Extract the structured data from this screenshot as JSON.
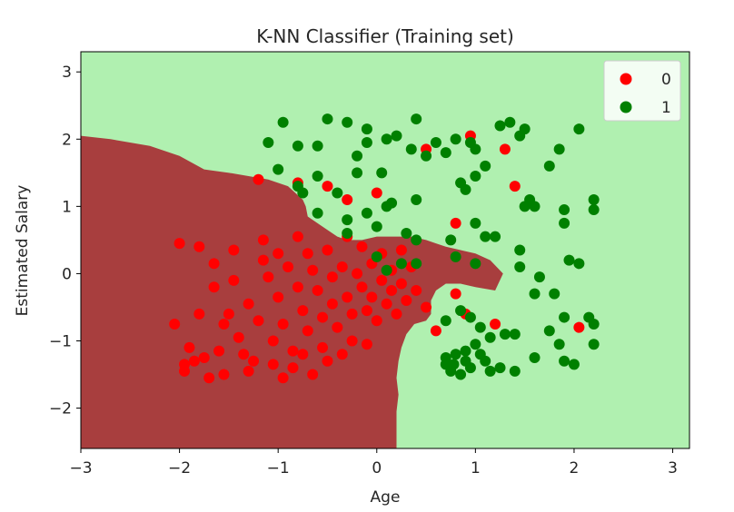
{
  "chart_data": {
    "type": "scatter",
    "title": "K-NN Classifier (Training set)",
    "xlabel": "Age",
    "ylabel": "Estimated Salary",
    "xlim": [
      -3,
      3.17
    ],
    "ylim": [
      -2.6,
      3.3
    ],
    "xticks": [
      -3,
      -2,
      -1,
      0,
      1,
      2,
      3
    ],
    "yticks": [
      -2,
      -1,
      0,
      1,
      2,
      3
    ],
    "grid": false,
    "legend_position": "top-right",
    "region_colors": {
      "0": "#a83e3e",
      "1": "#b0f0b0"
    },
    "decision_region_class0_polygon": [
      [
        -3,
        -2.6
      ],
      [
        -3,
        2.05
      ],
      [
        -2.7,
        2.0
      ],
      [
        -2.3,
        1.9
      ],
      [
        -2.0,
        1.75
      ],
      [
        -1.75,
        1.55
      ],
      [
        -1.5,
        1.5
      ],
      [
        -1.3,
        1.45
      ],
      [
        -1.1,
        1.4
      ],
      [
        -0.9,
        1.3
      ],
      [
        -0.75,
        1.1
      ],
      [
        -0.72,
        1.0
      ],
      [
        -0.7,
        0.85
      ],
      [
        -0.55,
        0.7
      ],
      [
        -0.4,
        0.55
      ],
      [
        -0.3,
        0.5
      ],
      [
        -0.15,
        0.5
      ],
      [
        0.0,
        0.55
      ],
      [
        0.15,
        0.55
      ],
      [
        0.35,
        0.55
      ],
      [
        0.5,
        0.5
      ],
      [
        0.6,
        0.45
      ],
      [
        0.7,
        0.4
      ],
      [
        0.85,
        0.35
      ],
      [
        1.0,
        0.3
      ],
      [
        1.15,
        0.2
      ],
      [
        1.28,
        0.0
      ],
      [
        1.2,
        -0.25
      ],
      [
        1.0,
        -0.2
      ],
      [
        0.85,
        -0.15
      ],
      [
        0.7,
        -0.15
      ],
      [
        0.6,
        -0.25
      ],
      [
        0.55,
        -0.4
      ],
      [
        0.55,
        -0.6
      ],
      [
        0.5,
        -0.7
      ],
      [
        0.38,
        -0.75
      ],
      [
        0.3,
        -0.9
      ],
      [
        0.25,
        -1.1
      ],
      [
        0.22,
        -1.3
      ],
      [
        0.2,
        -1.55
      ],
      [
        0.22,
        -1.8
      ],
      [
        0.2,
        -2.05
      ],
      [
        0.2,
        -2.6
      ]
    ],
    "series": [
      {
        "name": "0",
        "color": "#ff0000",
        "points": [
          [
            -2.0,
            0.45
          ],
          [
            -2.05,
            -0.75
          ],
          [
            -1.95,
            -1.35
          ],
          [
            -1.95,
            -1.45
          ],
          [
            -1.9,
            -1.1
          ],
          [
            -1.85,
            -1.3
          ],
          [
            -1.8,
            -0.6
          ],
          [
            -1.8,
            0.4
          ],
          [
            -1.75,
            -1.25
          ],
          [
            -1.7,
            -1.55
          ],
          [
            -1.65,
            -0.2
          ],
          [
            -1.65,
            0.15
          ],
          [
            -1.6,
            -1.15
          ],
          [
            -1.55,
            -0.75
          ],
          [
            -1.55,
            -1.5
          ],
          [
            -1.5,
            -0.6
          ],
          [
            -1.45,
            -0.1
          ],
          [
            -1.45,
            0.35
          ],
          [
            -1.4,
            -0.95
          ],
          [
            -1.35,
            -1.2
          ],
          [
            -1.3,
            -0.45
          ],
          [
            -1.3,
            -1.45
          ],
          [
            -1.25,
            -1.3
          ],
          [
            -1.2,
            -0.7
          ],
          [
            -1.15,
            0.5
          ],
          [
            -1.15,
            0.2
          ],
          [
            -1.1,
            -0.05
          ],
          [
            -1.05,
            -1.0
          ],
          [
            -1.05,
            -1.35
          ],
          [
            -1.0,
            -0.35
          ],
          [
            -1.0,
            0.3
          ],
          [
            -0.95,
            -1.55
          ],
          [
            -0.95,
            -0.75
          ],
          [
            -0.9,
            0.1
          ],
          [
            -0.85,
            -1.15
          ],
          [
            -0.85,
            -1.4
          ],
          [
            -0.8,
            -0.2
          ],
          [
            -0.8,
            0.55
          ],
          [
            -0.75,
            -0.55
          ],
          [
            -0.75,
            -1.2
          ],
          [
            -0.7,
            -0.85
          ],
          [
            -0.7,
            0.3
          ],
          [
            -0.65,
            -1.5
          ],
          [
            -0.65,
            0.05
          ],
          [
            -0.6,
            -0.25
          ],
          [
            -0.55,
            -1.1
          ],
          [
            -0.55,
            -0.65
          ],
          [
            -0.5,
            0.35
          ],
          [
            -0.5,
            -1.3
          ],
          [
            -0.45,
            -0.05
          ],
          [
            -0.45,
            -0.45
          ],
          [
            -0.4,
            -0.8
          ],
          [
            -0.35,
            0.1
          ],
          [
            -0.35,
            -1.2
          ],
          [
            -0.3,
            -0.35
          ],
          [
            -0.3,
            0.55
          ],
          [
            -0.25,
            -0.6
          ],
          [
            -0.25,
            -1.0
          ],
          [
            -0.2,
            0.0
          ],
          [
            -0.15,
            -0.2
          ],
          [
            -0.15,
            0.4
          ],
          [
            -0.1,
            -0.55
          ],
          [
            -0.1,
            -1.05
          ],
          [
            -0.05,
            0.15
          ],
          [
            -0.05,
            -0.35
          ],
          [
            0.0,
            -0.7
          ],
          [
            0.05,
            0.3
          ],
          [
            0.05,
            -0.1
          ],
          [
            0.1,
            -0.45
          ],
          [
            0.15,
            0.05
          ],
          [
            0.15,
            -0.25
          ],
          [
            0.2,
            -0.6
          ],
          [
            0.25,
            0.35
          ],
          [
            0.25,
            -0.15
          ],
          [
            0.3,
            -0.4
          ],
          [
            0.35,
            0.1
          ],
          [
            0.4,
            -0.25
          ],
          [
            0.5,
            -0.5
          ],
          [
            -1.2,
            1.4
          ],
          [
            -0.8,
            1.35
          ],
          [
            -0.5,
            1.3
          ],
          [
            -0.3,
            1.1
          ],
          [
            0.0,
            1.2
          ],
          [
            0.5,
            1.85
          ],
          [
            0.95,
            2.05
          ],
          [
            1.3,
            1.85
          ],
          [
            1.4,
            1.3
          ],
          [
            0.8,
            0.75
          ],
          [
            0.8,
            -0.3
          ],
          [
            0.6,
            -0.85
          ],
          [
            0.9,
            -0.6
          ],
          [
            1.2,
            -0.75
          ],
          [
            2.05,
            -0.8
          ]
        ]
      },
      {
        "name": "1",
        "color": "#008000",
        "points": [
          [
            -0.95,
            2.25
          ],
          [
            -1.1,
            1.95
          ],
          [
            -1.0,
            1.55
          ],
          [
            -0.8,
            1.9
          ],
          [
            -0.6,
            1.9
          ],
          [
            -0.5,
            2.3
          ],
          [
            -0.3,
            2.25
          ],
          [
            -0.1,
            2.15
          ],
          [
            -0.1,
            1.95
          ],
          [
            0.1,
            2.0
          ],
          [
            0.2,
            2.05
          ],
          [
            0.4,
            2.3
          ],
          [
            0.5,
            1.75
          ],
          [
            0.6,
            1.95
          ],
          [
            0.7,
            1.8
          ],
          [
            0.8,
            2.0
          ],
          [
            0.95,
            1.95
          ],
          [
            1.0,
            1.85
          ],
          [
            -0.2,
            1.75
          ],
          [
            0.05,
            1.5
          ],
          [
            0.35,
            1.85
          ],
          [
            0.85,
            1.35
          ],
          [
            0.9,
            1.25
          ],
          [
            1.0,
            1.45
          ],
          [
            1.1,
            1.6
          ],
          [
            1.25,
            2.2
          ],
          [
            1.35,
            2.25
          ],
          [
            1.45,
            2.05
          ],
          [
            1.5,
            2.15
          ],
          [
            1.75,
            1.6
          ],
          [
            1.85,
            1.85
          ],
          [
            2.05,
            2.15
          ],
          [
            -0.8,
            1.3
          ],
          [
            -0.6,
            1.45
          ],
          [
            -0.4,
            1.2
          ],
          [
            -0.2,
            1.5
          ],
          [
            0.15,
            1.05
          ],
          [
            0.4,
            1.1
          ],
          [
            -0.75,
            1.2
          ],
          [
            -0.6,
            0.9
          ],
          [
            -0.3,
            0.8
          ],
          [
            -0.1,
            0.9
          ],
          [
            0.1,
            1.0
          ],
          [
            -0.3,
            0.6
          ],
          [
            0.0,
            0.7
          ],
          [
            0.3,
            0.6
          ],
          [
            0.4,
            0.5
          ],
          [
            0.75,
            0.5
          ],
          [
            1.0,
            0.75
          ],
          [
            1.1,
            0.55
          ],
          [
            1.2,
            0.55
          ],
          [
            1.5,
            1.0
          ],
          [
            1.55,
            1.1
          ],
          [
            1.6,
            1.0
          ],
          [
            1.9,
            0.95
          ],
          [
            1.9,
            0.75
          ],
          [
            2.2,
            0.95
          ],
          [
            2.2,
            1.1
          ],
          [
            0.0,
            0.25
          ],
          [
            0.1,
            0.05
          ],
          [
            0.25,
            0.15
          ],
          [
            0.4,
            0.15
          ],
          [
            0.8,
            0.25
          ],
          [
            1.0,
            0.15
          ],
          [
            1.45,
            0.35
          ],
          [
            1.45,
            0.1
          ],
          [
            1.65,
            -0.05
          ],
          [
            1.95,
            0.2
          ],
          [
            2.05,
            0.15
          ],
          [
            0.7,
            -0.7
          ],
          [
            0.85,
            -0.55
          ],
          [
            0.95,
            -0.65
          ],
          [
            1.05,
            -0.8
          ],
          [
            1.15,
            -0.95
          ],
          [
            1.3,
            -0.9
          ],
          [
            1.0,
            -1.05
          ],
          [
            0.9,
            -1.15
          ],
          [
            1.1,
            -1.3
          ],
          [
            1.25,
            -1.4
          ],
          [
            1.4,
            -1.45
          ],
          [
            1.6,
            -1.25
          ],
          [
            1.85,
            -1.05
          ],
          [
            1.9,
            -1.3
          ],
          [
            2.0,
            -1.35
          ],
          [
            2.2,
            -1.05
          ],
          [
            2.2,
            -0.75
          ],
          [
            2.15,
            -0.65
          ],
          [
            1.9,
            -0.65
          ],
          [
            1.75,
            -0.85
          ],
          [
            0.7,
            -1.35
          ],
          [
            0.75,
            -1.45
          ],
          [
            0.85,
            -1.5
          ],
          [
            0.9,
            -1.3
          ],
          [
            0.8,
            -1.2
          ],
          [
            0.95,
            -1.4
          ],
          [
            1.05,
            -1.2
          ],
          [
            1.15,
            -1.45
          ],
          [
            1.4,
            -0.9
          ],
          [
            1.6,
            -0.3
          ],
          [
            1.8,
            -0.3
          ],
          [
            0.7,
            -1.25
          ],
          [
            0.78,
            -1.35
          ]
        ]
      }
    ]
  }
}
